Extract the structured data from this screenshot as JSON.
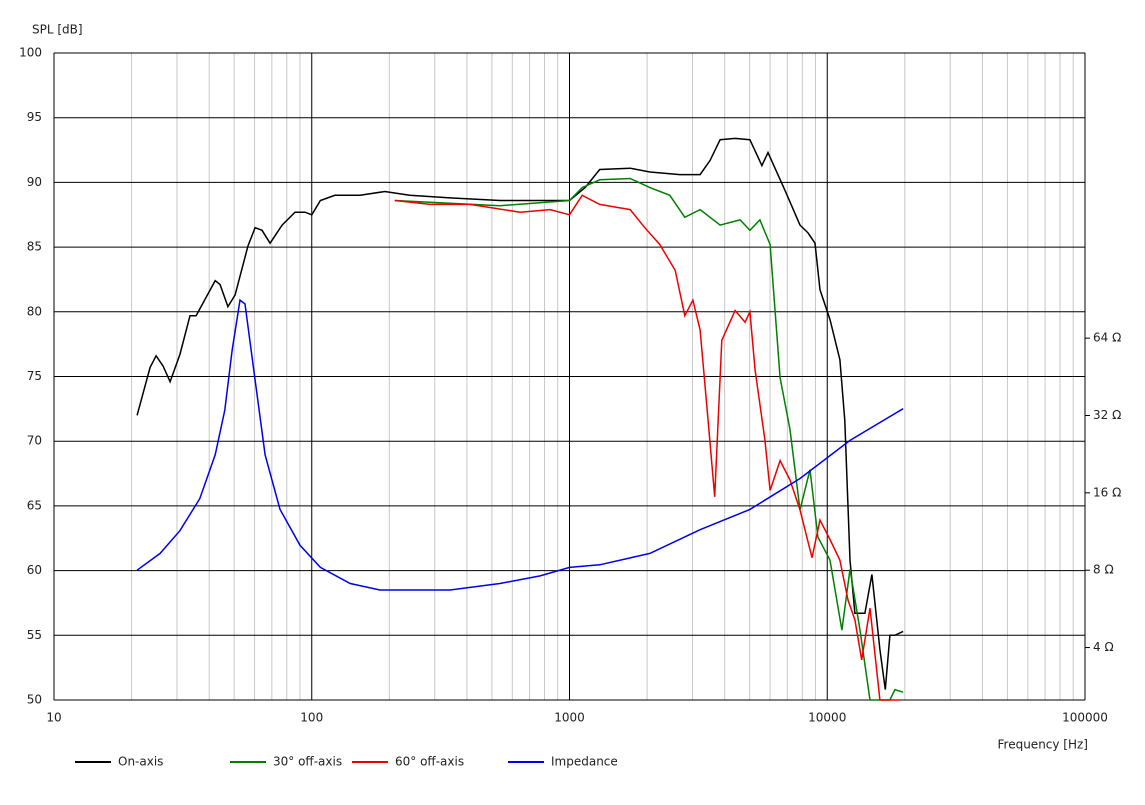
{
  "chart_data": {
    "type": "line",
    "ylabel": "SPL [dB]",
    "xlabel": "Frequency [Hz]",
    "xlog": true,
    "y2log": true,
    "grid": true,
    "xlim": [
      10,
      100000
    ],
    "xticks": [
      10,
      100,
      1000,
      10000,
      100000
    ],
    "x_minor_grid": [
      20,
      30,
      40,
      50,
      60,
      70,
      80,
      90,
      200,
      300,
      400,
      500,
      600,
      700,
      800,
      900,
      2000,
      3000,
      4000,
      5000,
      6000,
      7000,
      8000,
      9000,
      20000,
      30000,
      40000,
      50000,
      60000,
      70000,
      80000,
      90000
    ],
    "ylim": [
      50,
      100
    ],
    "yticks": [
      50,
      55,
      60,
      65,
      70,
      75,
      80,
      85,
      90,
      95,
      100
    ],
    "y2lim": [
      2.5,
      824
    ],
    "y2ticks": [
      {
        "value": 4,
        "label": "4 Ω"
      },
      {
        "value": 8,
        "label": "8 Ω"
      },
      {
        "value": 16,
        "label": "16 Ω"
      },
      {
        "value": 32,
        "label": "32 Ω"
      },
      {
        "value": 64,
        "label": "64 Ω"
      }
    ],
    "legend": "bottom",
    "series": [
      {
        "name": "On-axis",
        "color": "#000000",
        "x": [
          21,
          23.6,
          24.9,
          26.5,
          28.2,
          30.8,
          33.7,
          35.6,
          42.2,
          44.1,
          47.3,
          50.4,
          56.6,
          60.3,
          64.1,
          68.9,
          76.7,
          86.1,
          94.2,
          100,
          108,
          123,
          154,
          192,
          240,
          344,
          537,
          840,
          1000,
          1150,
          1310,
          1720,
          2050,
          2680,
          3210,
          3510,
          3840,
          4390,
          5010,
          5580,
          5890,
          6850,
          7840,
          8420,
          8960,
          9370,
          10250,
          11200,
          11700,
          12250,
          12800,
          14000,
          14900,
          16000,
          16800,
          17500,
          18300,
          19700
        ],
        "values": [
          72,
          75.7,
          76.6,
          75.8,
          74.6,
          76.7,
          79.7,
          79.7,
          82.4,
          82.1,
          80.4,
          81.3,
          85.1,
          86.5,
          86.3,
          85.3,
          86.7,
          87.7,
          87.7,
          87.5,
          88.6,
          89,
          89,
          89.3,
          89,
          88.8,
          88.6,
          88.6,
          88.6,
          89.6,
          91,
          91.1,
          90.8,
          90.6,
          90.6,
          91.7,
          93.3,
          93.4,
          93.3,
          91.3,
          92.3,
          89.4,
          86.7,
          86.1,
          85.3,
          81.7,
          79.4,
          76.3,
          71.6,
          60.8,
          56.7,
          56.7,
          59.7,
          53.9,
          50.8,
          55,
          55,
          55.3
        ]
      },
      {
        "name": "30° off-axis",
        "color": "#008000",
        "x": [
          210,
          537,
          1000,
          1120,
          1310,
          1720,
          2050,
          2450,
          2800,
          3210,
          3840,
          4590,
          5010,
          5480,
          6000,
          6560,
          7170,
          7840,
          8570,
          9200,
          10250,
          11400,
          12250,
          13400,
          14650,
          17500,
          18300,
          19700
        ],
        "values": [
          88.6,
          88.2,
          88.6,
          89.6,
          90.2,
          90.3,
          89.6,
          89,
          87.3,
          87.9,
          86.7,
          87.1,
          86.3,
          87.1,
          85.2,
          74.9,
          70.9,
          64.7,
          67.8,
          62.6,
          60.8,
          55.4,
          60.1,
          55.4,
          50,
          50,
          50.8,
          50.6
        ]
      },
      {
        "name": "60° off-axis",
        "color": "#ee0000",
        "x": [
          210,
          288,
          411,
          643,
          840,
          1000,
          1120,
          1310,
          1500,
          1720,
          1960,
          2240,
          2570,
          2800,
          3010,
          3210,
          3450,
          3660,
          3900,
          4390,
          4800,
          5010,
          5250,
          5730,
          6000,
          6560,
          7170,
          7840,
          8730,
          9370,
          10250,
          11200,
          12050,
          12800,
          13600,
          14650,
          16000,
          19100
        ],
        "values": [
          88.6,
          88.3,
          88.3,
          87.7,
          87.9,
          87.5,
          89,
          88.3,
          88.1,
          87.9,
          86.5,
          85.2,
          83.2,
          79.7,
          80.9,
          78.6,
          71.6,
          65.7,
          77.8,
          80.1,
          79.2,
          80,
          75.5,
          70.1,
          66.2,
          68.5,
          67,
          64.7,
          61,
          63.9,
          62.4,
          60.8,
          57.7,
          56.2,
          53.1,
          57.1,
          50,
          50
        ]
      },
      {
        "name": "Impedance",
        "color": "#0000ee",
        "axis": "y2",
        "x": [
          21,
          25.8,
          30.8,
          36.8,
          42.2,
          46,
          49.1,
          52.7,
          55.1,
          60.3,
          65.9,
          75.3,
          90,
          108,
          141,
          184,
          220,
          344,
          537,
          769,
          1000,
          1310,
          2050,
          3210,
          5010,
          7840,
          12250,
          19700
        ],
        "values": [
          8,
          9.3,
          11.4,
          15.2,
          22.5,
          33.6,
          57.3,
          90,
          87,
          44,
          22.5,
          13.8,
          10,
          8.2,
          7.1,
          6.7,
          6.7,
          6.7,
          7.1,
          7.6,
          8.2,
          8.4,
          9.3,
          11.5,
          13.8,
          18.2,
          25.6,
          34
        ]
      }
    ]
  }
}
